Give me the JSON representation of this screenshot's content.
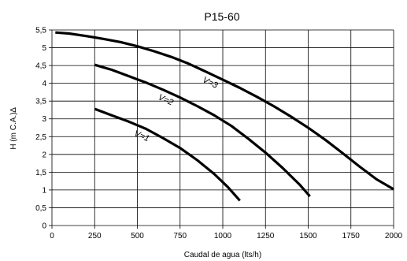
{
  "chart_data": {
    "type": "line",
    "title": "P15-60",
    "xlabel": "Caudal de agua (lts/h)",
    "ylabel": "H (m C.A.)",
    "ylabel_symbol": "∆",
    "xlim": [
      0,
      2000
    ],
    "ylim": [
      0,
      5.5
    ],
    "x_ticks": [
      "0",
      "250",
      "500",
      "750",
      "1000",
      "1250",
      "1500",
      "1750",
      "2000"
    ],
    "y_ticks": [
      "0",
      "0,5",
      "1",
      "1,5",
      "2",
      "2,5",
      "3",
      "3,5",
      "4",
      "4,5",
      "5",
      "5,5"
    ],
    "grid": true,
    "series": [
      {
        "name": "V=3",
        "points": [
          [
            20,
            5.43
          ],
          [
            100,
            5.4
          ],
          [
            200,
            5.33
          ],
          [
            300,
            5.25
          ],
          [
            400,
            5.16
          ],
          [
            500,
            5.04
          ],
          [
            600,
            4.9
          ],
          [
            700,
            4.74
          ],
          [
            800,
            4.55
          ],
          [
            900,
            4.33
          ],
          [
            1000,
            4.1
          ],
          [
            1100,
            3.87
          ],
          [
            1200,
            3.62
          ],
          [
            1300,
            3.35
          ],
          [
            1400,
            3.06
          ],
          [
            1500,
            2.75
          ],
          [
            1600,
            2.41
          ],
          [
            1700,
            2.04
          ],
          [
            1800,
            1.66
          ],
          [
            1900,
            1.3
          ],
          [
            2000,
            1.02
          ]
        ]
      },
      {
        "name": "V=2",
        "points": [
          [
            250,
            4.52
          ],
          [
            350,
            4.38
          ],
          [
            450,
            4.2
          ],
          [
            550,
            4.02
          ],
          [
            650,
            3.82
          ],
          [
            750,
            3.6
          ],
          [
            850,
            3.36
          ],
          [
            950,
            3.1
          ],
          [
            1050,
            2.8
          ],
          [
            1150,
            2.44
          ],
          [
            1250,
            2.05
          ],
          [
            1350,
            1.62
          ],
          [
            1450,
            1.15
          ],
          [
            1510,
            0.82
          ]
        ]
      },
      {
        "name": "V=1",
        "points": [
          [
            250,
            3.28
          ],
          [
            350,
            3.1
          ],
          [
            450,
            2.92
          ],
          [
            550,
            2.72
          ],
          [
            650,
            2.46
          ],
          [
            750,
            2.18
          ],
          [
            850,
            1.84
          ],
          [
            950,
            1.45
          ],
          [
            1030,
            1.08
          ],
          [
            1100,
            0.7
          ]
        ]
      }
    ]
  }
}
